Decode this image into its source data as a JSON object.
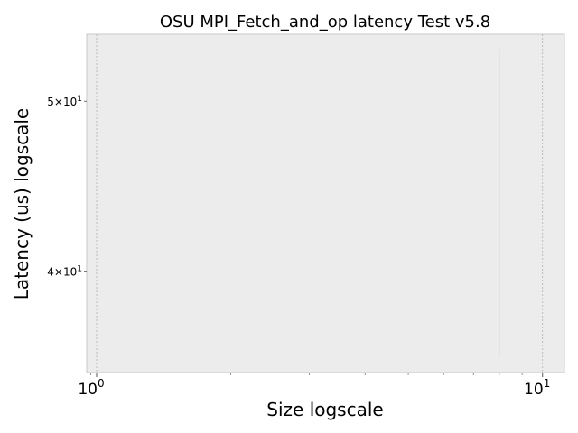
{
  "chart_data": {
    "type": "line",
    "title": "OSU MPI_Fetch_and_op latency Test v5.8",
    "xlabel": "Size logscale",
    "ylabel": "Latency (us) logscale",
    "xscale": "log",
    "yscale": "log",
    "xlim": [
      0.95,
      11.2
    ],
    "ylim": [
      35,
      54.6
    ],
    "x_ticks": [
      {
        "value": 1,
        "base": "10",
        "exp": "0"
      },
      {
        "value": 10,
        "base": "10",
        "exp": "1"
      }
    ],
    "y_ticks": [
      {
        "value": 40,
        "mantissa": "4",
        "base": "10",
        "exp": "1"
      },
      {
        "value": 50,
        "mantissa": "5",
        "base": "10",
        "exp": "1"
      }
    ],
    "grid": true,
    "series": [
      {
        "x": [
          8,
          8
        ],
        "y": [
          35.7,
          53.6
        ],
        "color": "#d8d8d8"
      }
    ],
    "background": "#ececec"
  }
}
